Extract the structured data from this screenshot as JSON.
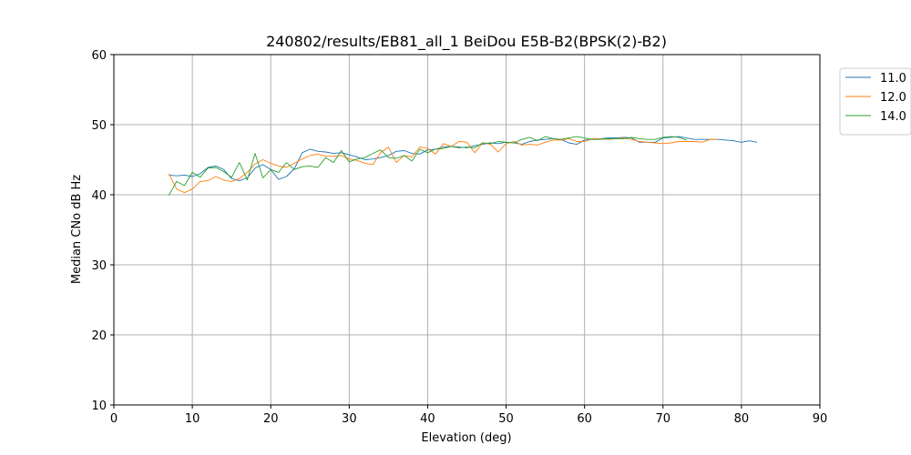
{
  "chart_data": {
    "type": "line",
    "title": "240802/results/EB81_all_1 BeiDou E5B-B2(BPSK(2)-B2)",
    "xlabel": "Elevation (deg)",
    "ylabel": "Median CNo dB Hz",
    "xlim": [
      0,
      90
    ],
    "ylim": [
      10,
      60
    ],
    "xticks": [
      0,
      10,
      20,
      30,
      40,
      50,
      60,
      70,
      80,
      90
    ],
    "yticks": [
      10,
      20,
      30,
      40,
      50,
      60
    ],
    "grid": true,
    "legend_position": "outside-top-right",
    "series": [
      {
        "name": "11.0",
        "color": "#1f77b4",
        "x": [
          7,
          8,
          9,
          10,
          11,
          12,
          13,
          14,
          15,
          16,
          17,
          18,
          19,
          20,
          21,
          22,
          23,
          24,
          25,
          26,
          27,
          28,
          29,
          30,
          31,
          32,
          33,
          34,
          35,
          36,
          37,
          38,
          39,
          40,
          41,
          42,
          43,
          44,
          45,
          46,
          47,
          48,
          49,
          50,
          51,
          52,
          53,
          54,
          55,
          56,
          57,
          58,
          59,
          60,
          61,
          62,
          63,
          64,
          65,
          66,
          67,
          68,
          69,
          70,
          71,
          72,
          73,
          74,
          75,
          76,
          77,
          78,
          79,
          80,
          81,
          82
        ],
        "y": [
          42.8,
          42.7,
          42.8,
          42.6,
          43.0,
          43.9,
          44.1,
          43.6,
          42.3,
          42.0,
          42.4,
          43.8,
          44.3,
          43.6,
          42.2,
          42.6,
          43.7,
          46.0,
          46.5,
          46.2,
          46.1,
          45.9,
          46.0,
          45.7,
          45.4,
          45.0,
          45.1,
          45.3,
          45.6,
          46.2,
          46.3,
          45.9,
          45.8,
          46.4,
          46.5,
          46.8,
          46.9,
          46.8,
          46.7,
          47.0,
          47.2,
          47.4,
          47.3,
          47.5,
          47.4,
          47.2,
          47.6,
          47.8,
          47.9,
          48.0,
          47.9,
          47.4,
          47.2,
          47.8,
          47.9,
          48.0,
          48.1,
          48.1,
          48.2,
          48.1,
          47.5,
          47.5,
          47.5,
          48.1,
          48.2,
          48.3,
          48.1,
          47.9,
          47.9,
          47.9,
          47.9,
          47.8,
          47.7,
          47.5,
          47.7,
          47.5
        ]
      },
      {
        "name": "12.0",
        "color": "#ff7f0e",
        "x": [
          7,
          8,
          9,
          10,
          11,
          12,
          13,
          14,
          15,
          16,
          17,
          18,
          19,
          20,
          21,
          22,
          23,
          24,
          25,
          26,
          27,
          28,
          29,
          30,
          31,
          32,
          33,
          34,
          35,
          36,
          37,
          38,
          39,
          40,
          41,
          42,
          43,
          44,
          45,
          46,
          47,
          48,
          49,
          50,
          51,
          52,
          53,
          54,
          55,
          56,
          57,
          58,
          59,
          60,
          61,
          62,
          63,
          64,
          65,
          66,
          67,
          68,
          69,
          70,
          71,
          72,
          73,
          74,
          75,
          76,
          77
        ],
        "y": [
          43.0,
          40.8,
          40.3,
          40.8,
          41.9,
          42.0,
          42.6,
          42.1,
          41.9,
          42.3,
          43.2,
          44.4,
          45.0,
          44.5,
          44.1,
          43.9,
          44.5,
          45.1,
          45.6,
          45.8,
          45.5,
          45.5,
          45.6,
          45.1,
          44.9,
          44.5,
          44.3,
          46.0,
          46.8,
          44.6,
          45.6,
          45.4,
          46.8,
          46.6,
          45.8,
          47.3,
          46.9,
          47.6,
          47.5,
          46.0,
          47.4,
          47.2,
          46.1,
          47.3,
          47.6,
          47.1,
          47.2,
          47.1,
          47.5,
          47.8,
          47.8,
          48.0,
          47.6,
          47.6,
          48.0,
          48.0,
          47.9,
          48.0,
          48.1,
          47.9,
          47.6,
          47.5,
          47.4,
          47.3,
          47.4,
          47.6,
          47.6,
          47.6,
          47.5,
          47.9,
          47.9
        ]
      },
      {
        "name": "14.0",
        "color": "#2ca02c",
        "x": [
          7,
          8,
          9,
          10,
          11,
          12,
          13,
          14,
          15,
          16,
          17,
          18,
          19,
          20,
          21,
          22,
          23,
          24,
          25,
          26,
          27,
          28,
          29,
          30,
          31,
          32,
          33,
          34,
          35,
          36,
          37,
          38,
          39,
          40,
          41,
          42,
          43,
          44,
          45,
          46,
          47,
          48,
          49,
          50,
          51,
          52,
          53,
          54,
          55,
          56,
          57,
          58,
          59,
          60,
          61,
          62,
          63,
          64,
          65,
          66,
          67,
          68,
          69,
          70,
          71,
          72,
          73
        ],
        "y": [
          39.9,
          41.9,
          41.3,
          43.2,
          42.5,
          43.8,
          43.9,
          43.3,
          42.5,
          44.6,
          42.1,
          45.9,
          42.4,
          43.6,
          43.2,
          44.6,
          43.6,
          44.0,
          44.1,
          43.9,
          45.3,
          44.6,
          46.3,
          44.7,
          45.1,
          45.3,
          45.9,
          46.4,
          45.3,
          45.2,
          45.6,
          44.8,
          46.5,
          46.0,
          46.5,
          46.6,
          46.9,
          46.7,
          46.8,
          46.7,
          47.4,
          47.3,
          47.6,
          47.5,
          47.4,
          47.9,
          48.2,
          47.7,
          48.3,
          48.0,
          47.9,
          48.1,
          48.3,
          48.1,
          47.9,
          47.9,
          48.0,
          48.0,
          48.0,
          48.2,
          48.0,
          47.9,
          47.9,
          48.2,
          48.3,
          48.2,
          47.8
        ]
      }
    ]
  }
}
